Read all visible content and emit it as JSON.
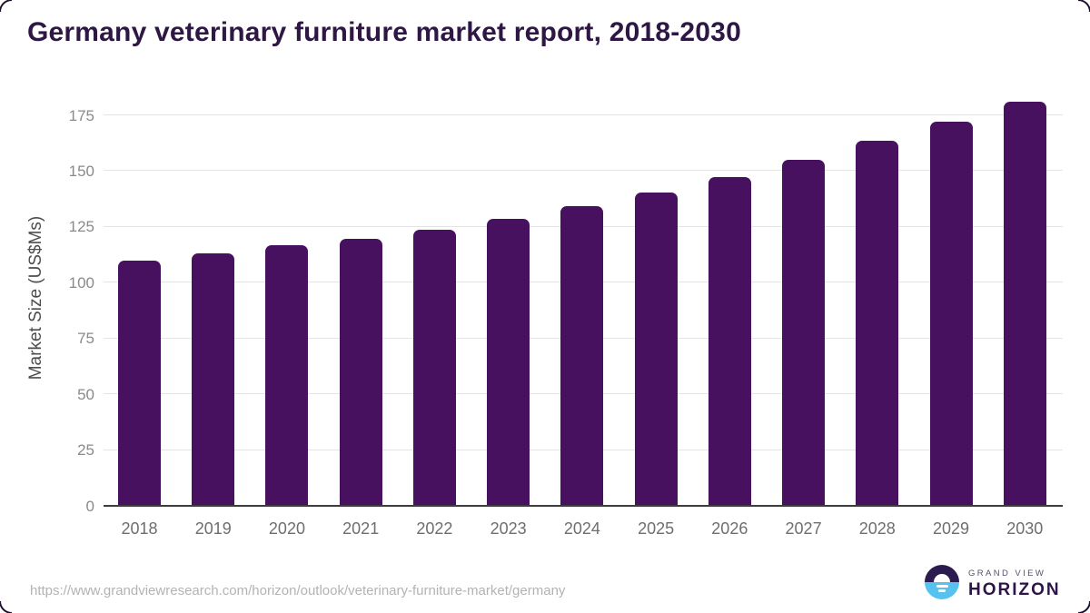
{
  "page": {
    "title": "Germany veterinary furniture market report, 2018-2030"
  },
  "chart_data": {
    "type": "bar",
    "title": "Germany veterinary furniture market report, 2018-2030",
    "categories": [
      "2018",
      "2019",
      "2020",
      "2021",
      "2022",
      "2023",
      "2024",
      "2025",
      "2026",
      "2027",
      "2028",
      "2029",
      "2030"
    ],
    "values": [
      110.0,
      113.3,
      117.0,
      119.6,
      123.7,
      128.5,
      134.3,
      140.5,
      147.3,
      155.2,
      163.5,
      172.0,
      181.3
    ],
    "xlabel": "",
    "ylabel": "Market Size (US$Ms)",
    "ylim": [
      0,
      186
    ],
    "yticks": [
      0,
      25,
      50,
      75,
      100,
      125,
      150,
      175
    ],
    "grid": true,
    "legend": false,
    "bar_color": "#471160"
  },
  "footer": {
    "source_url": "https://www.grandviewresearch.com/horizon/outlook/veterinary-furniture-market/germany",
    "logo": {
      "line1": "GRAND VIEW",
      "line2": "HORIZON"
    }
  },
  "colors": {
    "title": "#2e1745",
    "bar": "#471160",
    "gridline": "#e4e4e4",
    "axis_line": "#3d3d3d",
    "logo_dark": "#2b1b4e",
    "logo_blue": "#58c2ef"
  }
}
